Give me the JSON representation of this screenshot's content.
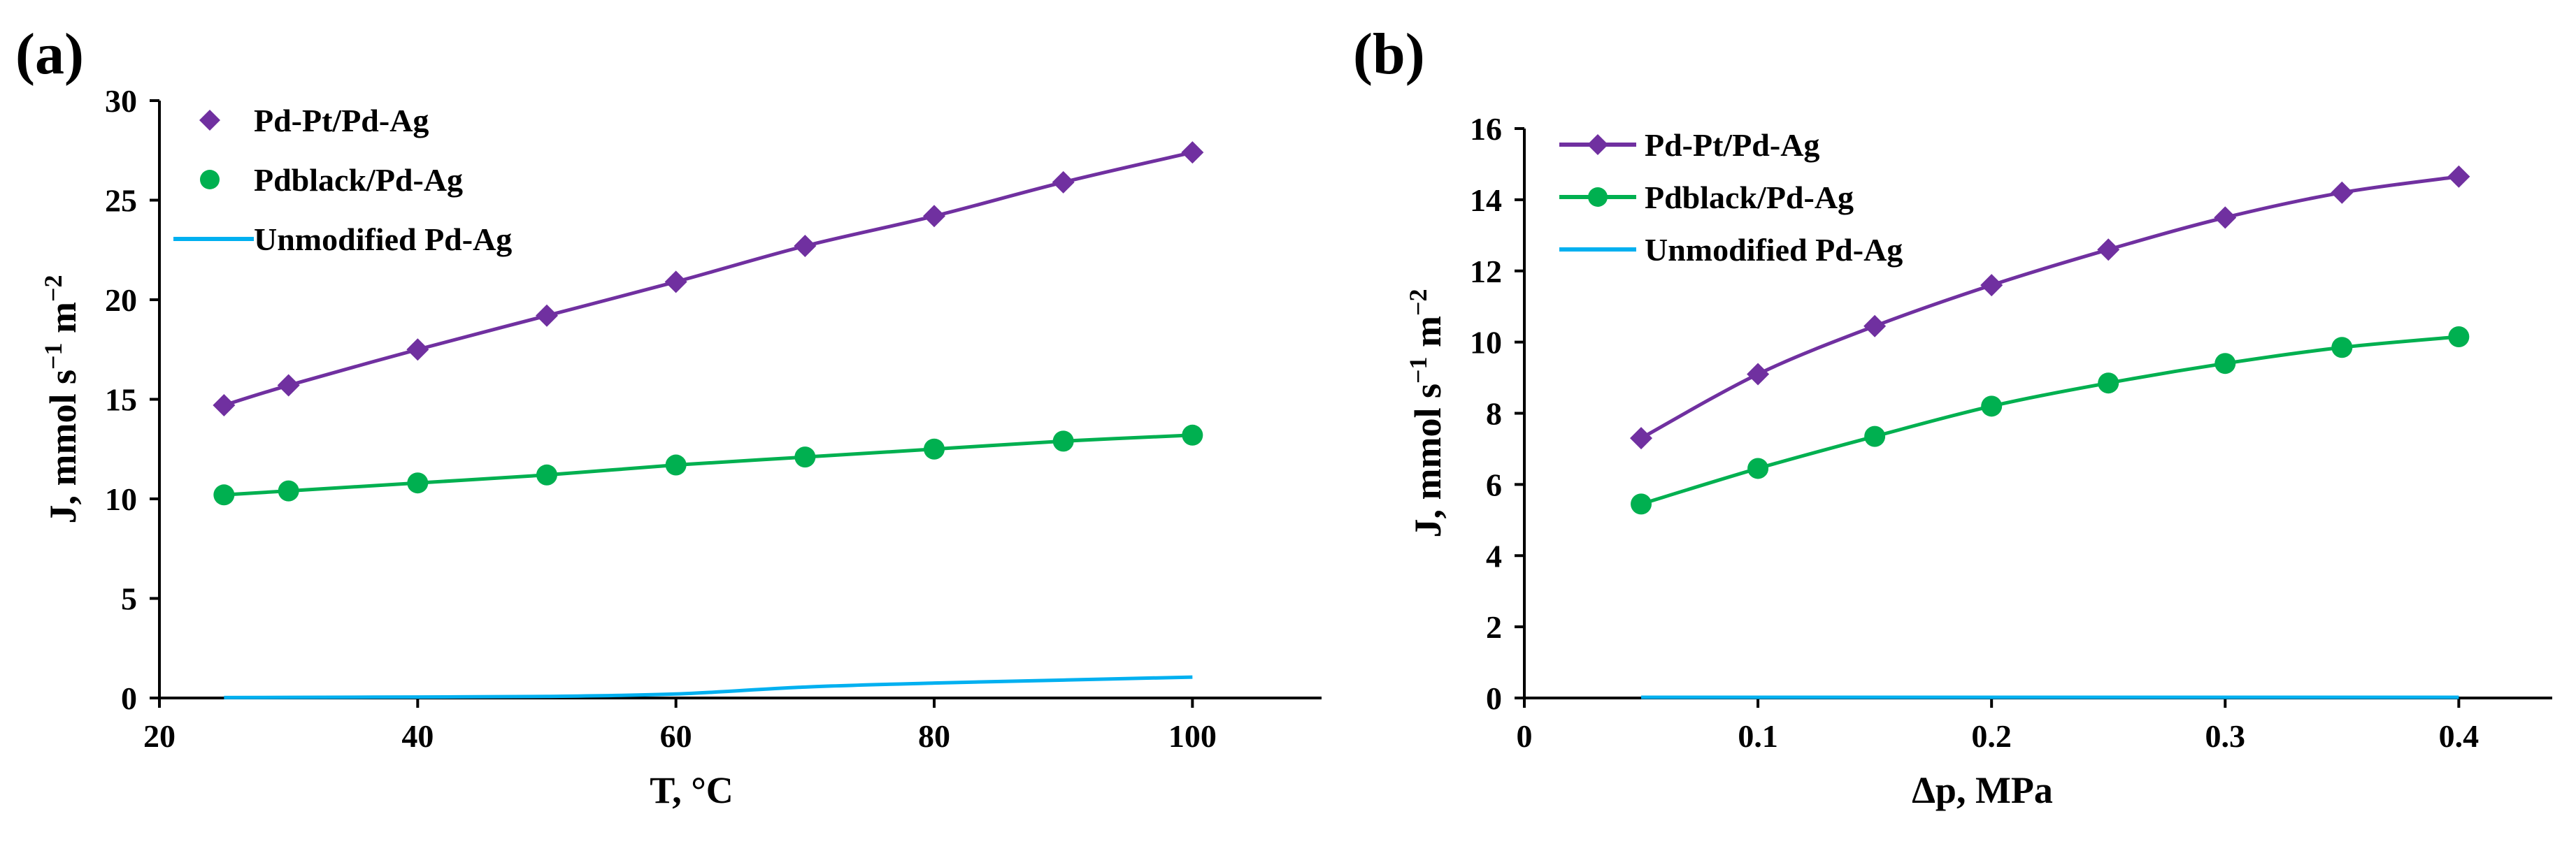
{
  "chart_data": [
    {
      "type": "line",
      "panel_label": "(a)",
      "title": "",
      "xlabel": "T, °C",
      "ylabel_main": "J, mmol s",
      "ylabel_sup1": "−1",
      "ylabel_mid": " m",
      "ylabel_sup2": "−2",
      "xlim": [
        20,
        110
      ],
      "ylim": [
        0,
        30
      ],
      "xticks": [
        "20",
        "40",
        "60",
        "80",
        "100"
      ],
      "yticks": [
        "0",
        "5",
        "10",
        "15",
        "20",
        "25",
        "30"
      ],
      "legend_position": "top-left",
      "series": [
        {
          "name": "Pd-Pt/Pd-Ag",
          "color": "#7030A0",
          "marker": "diamond",
          "line": true,
          "x": [
            25,
            30,
            40,
            50,
            60,
            70,
            80,
            90,
            100
          ],
          "values": [
            14.7,
            15.7,
            17.5,
            19.2,
            20.9,
            22.7,
            24.2,
            25.9,
            27.4
          ]
        },
        {
          "name": "Pdblack/Pd-Ag",
          "color": "#00B050",
          "marker": "circle",
          "line": true,
          "x": [
            25,
            30,
            40,
            50,
            60,
            70,
            80,
            90,
            100
          ],
          "values": [
            10.2,
            10.4,
            10.8,
            11.2,
            11.7,
            12.1,
            12.5,
            12.9,
            13.2
          ]
        },
        {
          "name": "Unmodified Pd-Ag",
          "color": "#00B0F0",
          "marker": "none",
          "line": true,
          "x": [
            25,
            30,
            40,
            50,
            60,
            70,
            80,
            90,
            100
          ],
          "values": [
            0.02,
            0.03,
            0.05,
            0.08,
            0.2,
            0.55,
            0.75,
            0.9,
            1.05
          ]
        }
      ]
    },
    {
      "type": "line",
      "panel_label": "(b)",
      "title": "",
      "xlabel": "Δp, MPa",
      "ylabel_main": "J, mmol s",
      "ylabel_sup1": "−1",
      "ylabel_mid": " m",
      "ylabel_sup2": "−2",
      "xlim": [
        0,
        0.44
      ],
      "ylim": [
        0,
        16
      ],
      "xticks": [
        "0",
        "0.1",
        "0.2",
        "0.3",
        "0.4"
      ],
      "xtick_values": [
        0,
        0.1,
        0.2,
        0.3,
        0.4
      ],
      "yticks": [
        "0",
        "2",
        "4",
        "6",
        "8",
        "10",
        "12",
        "14",
        "16"
      ],
      "legend_position": "top-left",
      "series": [
        {
          "name": "Pd-Pt/Pd-Ag",
          "color": "#7030A0",
          "marker": "diamond",
          "line": true,
          "x": [
            0.05,
            0.1,
            0.15,
            0.2,
            0.25,
            0.3,
            0.35,
            0.4
          ],
          "values": [
            7.3,
            9.1,
            10.45,
            11.6,
            12.6,
            13.5,
            14.2,
            14.65
          ]
        },
        {
          "name": "Pdblack/Pd-Ag",
          "color": "#00B050",
          "marker": "circle",
          "line": true,
          "x": [
            0.05,
            0.1,
            0.15,
            0.2,
            0.25,
            0.3,
            0.35,
            0.4
          ],
          "values": [
            5.45,
            6.45,
            7.35,
            8.2,
            8.85,
            9.4,
            9.85,
            10.15
          ]
        },
        {
          "name": "Unmodified Pd-Ag",
          "color": "#00B0F0",
          "marker": "none",
          "line": true,
          "x": [
            0.05,
            0.1,
            0.15,
            0.2,
            0.25,
            0.3,
            0.35,
            0.4
          ],
          "values": [
            0.02,
            0.02,
            0.02,
            0.02,
            0.02,
            0.02,
            0.02,
            0.02
          ]
        }
      ]
    }
  ]
}
